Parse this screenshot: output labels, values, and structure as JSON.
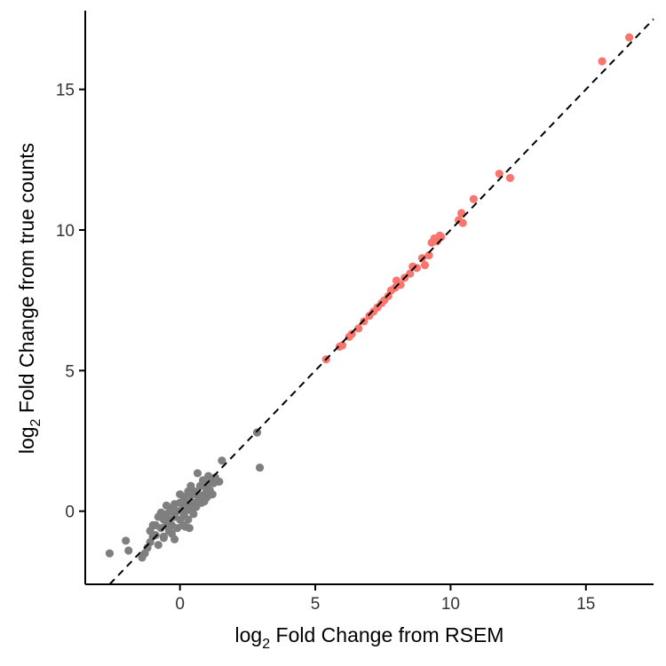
{
  "chart_data": {
    "type": "scatter",
    "xlabel": {
      "base": "log",
      "sub": "2",
      "rest": " Fold Change from RSEM"
    },
    "ylabel": {
      "base": "log",
      "sub": "2",
      "rest": " Fold Change from true counts"
    },
    "xlim": [
      -3.5,
      17.5
    ],
    "ylim": [
      -2.6,
      17.8
    ],
    "xticks": [
      0,
      5,
      10,
      15
    ],
    "yticks": [
      0,
      5,
      10,
      15
    ],
    "reference_line": {
      "slope": 1,
      "intercept": 0,
      "style": "dashed",
      "color": "#000000"
    },
    "grid": false,
    "legend": "none",
    "series": [
      {
        "color": "#F8766D",
        "points": [
          [
            5.4,
            5.4
          ],
          [
            5.9,
            5.85
          ],
          [
            6.0,
            5.9
          ],
          [
            6.25,
            6.2
          ],
          [
            6.35,
            6.3
          ],
          [
            6.6,
            6.5
          ],
          [
            6.8,
            6.75
          ],
          [
            7.0,
            6.95
          ],
          [
            7.15,
            7.1
          ],
          [
            7.3,
            7.25
          ],
          [
            7.45,
            7.4
          ],
          [
            7.55,
            7.5
          ],
          [
            7.7,
            7.65
          ],
          [
            7.8,
            7.85
          ],
          [
            7.95,
            7.95
          ],
          [
            8.0,
            8.2
          ],
          [
            8.15,
            8.05
          ],
          [
            8.3,
            8.3
          ],
          [
            8.5,
            8.45
          ],
          [
            8.6,
            8.7
          ],
          [
            8.75,
            8.65
          ],
          [
            8.95,
            9.0
          ],
          [
            9.05,
            8.75
          ],
          [
            9.2,
            9.1
          ],
          [
            9.3,
            9.55
          ],
          [
            9.4,
            9.7
          ],
          [
            9.5,
            9.6
          ],
          [
            9.6,
            9.8
          ],
          [
            9.65,
            9.75
          ],
          [
            10.3,
            10.35
          ],
          [
            10.4,
            10.6
          ],
          [
            10.45,
            10.25
          ],
          [
            10.85,
            11.1
          ],
          [
            11.8,
            12.0
          ],
          [
            12.2,
            11.85
          ],
          [
            15.6,
            16.0
          ],
          [
            16.6,
            16.85
          ]
        ]
      },
      {
        "color": "#7F7F7F",
        "points": [
          [
            -2.6,
            -1.5
          ],
          [
            -2.0,
            -1.05
          ],
          [
            -1.9,
            -1.4
          ],
          [
            -1.4,
            -1.65
          ],
          [
            -1.3,
            -1.5
          ],
          [
            -1.2,
            -1.3
          ],
          [
            -1.1,
            -1.1
          ],
          [
            -1.0,
            -0.9
          ],
          [
            -1.1,
            -0.7
          ],
          [
            -0.9,
            -0.5
          ],
          [
            -0.8,
            -0.2
          ],
          [
            -0.9,
            -0.85
          ],
          [
            -0.7,
            -0.6
          ],
          [
            -0.6,
            -0.9
          ],
          [
            -0.6,
            -0.3
          ],
          [
            -0.5,
            -0.5
          ],
          [
            -0.5,
            -0.1
          ],
          [
            -0.4,
            -0.7
          ],
          [
            -0.4,
            -0.3
          ],
          [
            -0.3,
            0.1
          ],
          [
            -0.3,
            -0.5
          ],
          [
            -0.2,
            -0.2
          ],
          [
            -0.2,
            0.25
          ],
          [
            -0.1,
            -0.6
          ],
          [
            -0.1,
            0.0
          ],
          [
            0.0,
            0.3
          ],
          [
            0.0,
            -0.3
          ],
          [
            0.1,
            0.1
          ],
          [
            0.1,
            -0.5
          ],
          [
            0.15,
            0.5
          ],
          [
            0.2,
            0.0
          ],
          [
            0.25,
            0.3
          ],
          [
            0.3,
            -0.3
          ],
          [
            0.35,
            0.15
          ],
          [
            0.4,
            0.55
          ],
          [
            0.45,
            0.0
          ],
          [
            0.5,
            0.3
          ],
          [
            0.55,
            0.7
          ],
          [
            0.6,
            0.15
          ],
          [
            0.65,
            1.35
          ],
          [
            0.7,
            0.45
          ],
          [
            0.75,
            0.9
          ],
          [
            0.8,
            0.3
          ],
          [
            0.85,
            1.1
          ],
          [
            0.9,
            0.6
          ],
          [
            0.95,
            0.85
          ],
          [
            1.0,
            0.5
          ],
          [
            1.05,
            1.25
          ],
          [
            1.1,
            0.75
          ],
          [
            1.15,
            1.05
          ],
          [
            1.2,
            0.6
          ],
          [
            1.25,
            1.0
          ],
          [
            1.3,
            1.2
          ],
          [
            1.45,
            1.05
          ],
          [
            1.55,
            1.8
          ],
          [
            2.85,
            2.8
          ],
          [
            2.95,
            1.55
          ],
          [
            -0.6,
            -0.95
          ],
          [
            -0.3,
            -0.8
          ],
          [
            0.2,
            -0.55
          ],
          [
            0.35,
            -0.6
          ],
          [
            -0.8,
            -1.2
          ],
          [
            -0.5,
            0.2
          ],
          [
            0.0,
            0.6
          ],
          [
            0.4,
            0.9
          ],
          [
            0.6,
            0.6
          ],
          [
            -1.0,
            -0.5
          ],
          [
            -0.2,
            -1.0
          ],
          [
            0.75,
            0.55
          ],
          [
            0.9,
            0.35
          ],
          [
            -0.35,
            0.0
          ],
          [
            0.15,
            -0.15
          ],
          [
            0.5,
            -0.1
          ],
          [
            0.3,
            0.7
          ],
          [
            -0.7,
            -0.05
          ],
          [
            1.0,
            0.95
          ]
        ]
      }
    ]
  }
}
